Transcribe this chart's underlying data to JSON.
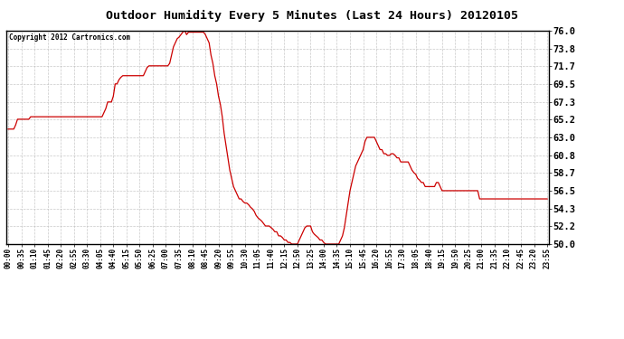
{
  "title": "Outdoor Humidity Every 5 Minutes (Last 24 Hours) 20120105",
  "copyright_text": "Copyright 2012 Cartronics.com",
  "line_color": "#cc0000",
  "background_color": "#ffffff",
  "plot_background": "#ffffff",
  "grid_color": "#bbbbbb",
  "ylim": [
    50.0,
    76.0
  ],
  "yticks": [
    50.0,
    52.2,
    54.3,
    56.5,
    58.7,
    60.8,
    63.0,
    65.2,
    67.3,
    69.5,
    71.7,
    73.8,
    76.0
  ],
  "humidity_data": [
    64.0,
    64.0,
    64.0,
    64.0,
    64.5,
    65.2,
    65.2,
    65.2,
    65.2,
    65.2,
    65.2,
    65.2,
    65.5,
    65.5,
    65.5,
    65.5,
    65.5,
    65.5,
    65.5,
    65.5,
    65.5,
    65.5,
    65.5,
    65.5,
    65.5,
    65.5,
    65.5,
    65.5,
    65.5,
    65.5,
    65.5,
    65.5,
    65.5,
    65.5,
    65.5,
    65.5,
    65.5,
    65.5,
    65.5,
    65.5,
    65.5,
    65.5,
    65.5,
    65.5,
    65.5,
    65.5,
    65.5,
    65.5,
    65.5,
    65.5,
    65.5,
    66.0,
    66.5,
    67.3,
    67.3,
    67.3,
    68.0,
    69.5,
    69.5,
    70.0,
    70.3,
    70.5,
    70.5,
    70.5,
    70.5,
    70.5,
    70.5,
    70.5,
    70.5,
    70.5,
    70.5,
    70.5,
    70.5,
    71.0,
    71.5,
    71.7,
    71.7,
    71.7,
    71.7,
    71.7,
    71.7,
    71.7,
    71.7,
    71.7,
    71.7,
    71.7,
    72.0,
    73.0,
    74.0,
    74.5,
    75.0,
    75.2,
    75.5,
    75.8,
    76.0,
    75.5,
    75.8,
    75.8,
    75.8,
    75.8,
    75.8,
    75.8,
    75.8,
    75.8,
    75.8,
    75.5,
    75.0,
    74.5,
    73.0,
    72.0,
    70.5,
    69.5,
    68.0,
    67.0,
    65.5,
    63.5,
    62.0,
    60.5,
    59.0,
    58.0,
    57.0,
    56.5,
    56.0,
    55.5,
    55.5,
    55.2,
    55.0,
    55.0,
    54.8,
    54.5,
    54.3,
    54.0,
    53.5,
    53.2,
    53.0,
    52.8,
    52.5,
    52.2,
    52.2,
    52.2,
    52.0,
    51.8,
    51.5,
    51.5,
    51.0,
    51.0,
    50.8,
    50.5,
    50.5,
    50.2,
    50.2,
    50.0,
    50.0,
    50.0,
    50.0,
    50.5,
    51.0,
    51.5,
    52.0,
    52.2,
    52.2,
    52.2,
    51.5,
    51.2,
    51.0,
    50.8,
    50.5,
    50.5,
    50.2,
    50.0,
    50.0,
    50.0,
    50.0,
    50.0,
    50.0,
    50.0,
    50.0,
    50.5,
    51.0,
    52.0,
    53.5,
    55.0,
    56.5,
    57.5,
    58.5,
    59.5,
    60.0,
    60.5,
    61.0,
    61.5,
    62.5,
    63.0,
    63.0,
    63.0,
    63.0,
    63.0,
    62.5,
    62.0,
    61.5,
    61.5,
    61.0,
    61.0,
    60.8,
    60.8,
    61.0,
    61.0,
    60.8,
    60.5,
    60.5,
    60.0,
    60.0,
    60.0,
    60.0,
    60.0,
    59.5,
    59.0,
    58.7,
    58.5,
    58.0,
    57.8,
    57.5,
    57.5,
    57.0,
    57.0,
    57.0,
    57.0,
    57.0,
    57.0,
    57.5,
    57.5,
    57.0,
    56.5,
    56.5,
    56.5,
    56.5,
    56.5,
    56.5,
    56.5,
    56.5,
    56.5,
    56.5,
    56.5,
    56.5,
    56.5,
    56.5,
    56.5,
    56.5,
    56.5,
    56.5,
    56.5,
    56.5,
    55.5,
    55.5,
    55.5,
    55.5,
    55.5,
    55.5,
    55.5,
    55.5,
    55.5,
    55.5,
    55.5,
    55.5,
    55.5,
    55.5,
    55.5,
    55.5,
    55.5,
    55.5,
    55.5,
    55.5,
    55.5,
    55.5,
    55.5,
    55.5,
    55.5,
    55.5,
    55.5,
    55.5,
    55.5,
    55.5,
    55.5,
    55.5,
    55.5,
    55.5,
    55.5,
    55.5,
    55.5
  ]
}
